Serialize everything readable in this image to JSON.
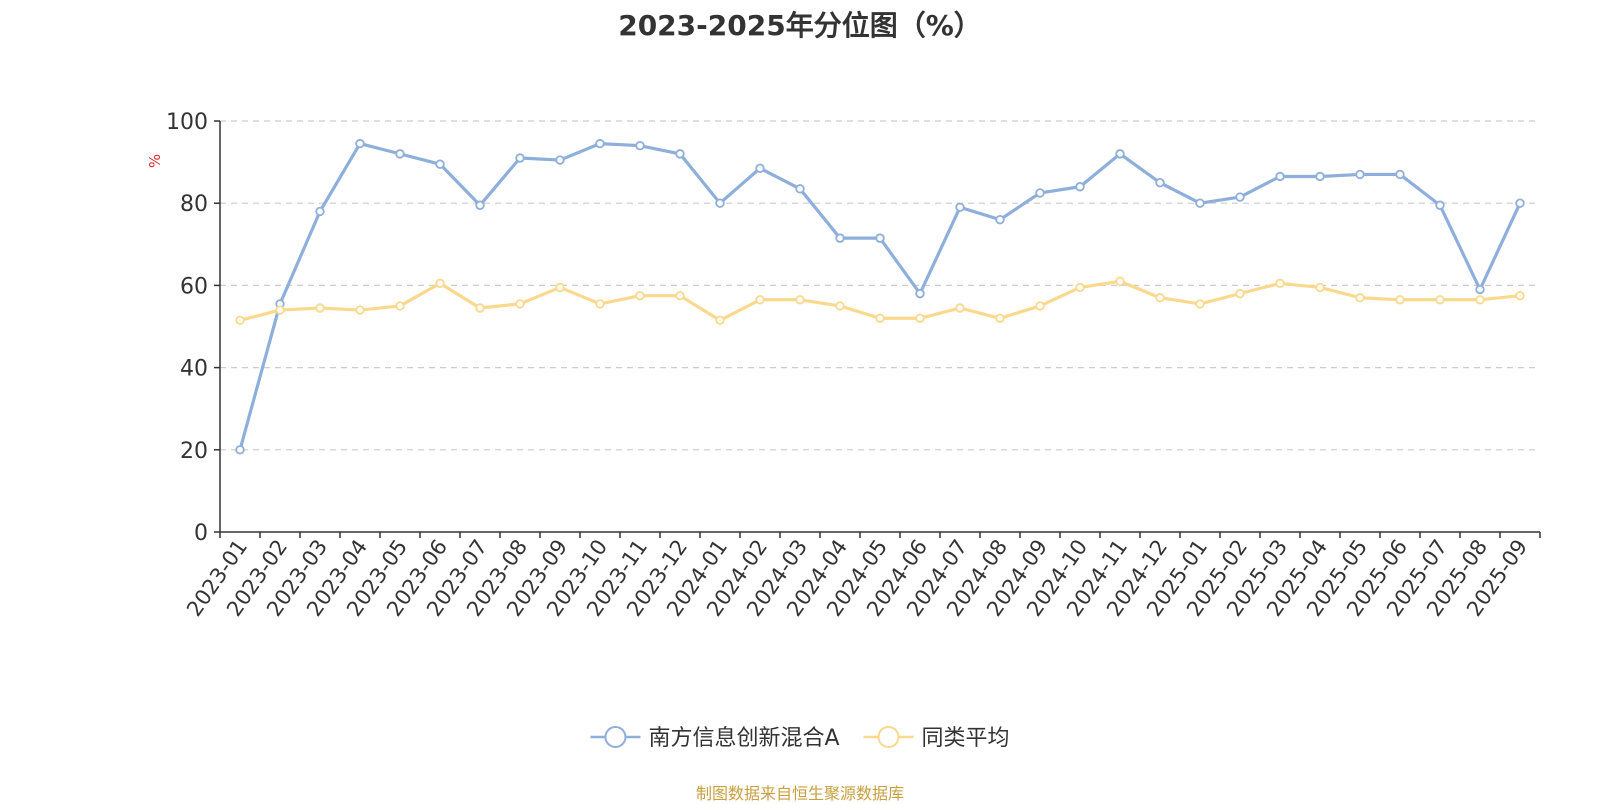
{
  "chart_data": {
    "type": "line",
    "title": "2023-2025年分位图（%）",
    "ylabel": "%",
    "ylim": [
      0,
      100
    ],
    "yticks": [
      0,
      20,
      40,
      60,
      80,
      100
    ],
    "grid": true,
    "legend_position": "bottom-center",
    "categories": [
      "2023-01",
      "2023-02",
      "2023-03",
      "2023-04",
      "2023-05",
      "2023-06",
      "2023-07",
      "2023-08",
      "2023-09",
      "2023-10",
      "2023-11",
      "2023-12",
      "2024-01",
      "2024-02",
      "2024-03",
      "2024-04",
      "2024-05",
      "2024-06",
      "2024-07",
      "2024-08",
      "2024-09",
      "2024-10",
      "2024-11",
      "2024-12",
      "2025-01",
      "2025-02",
      "2025-03",
      "2025-04",
      "2025-05",
      "2025-06",
      "2025-07",
      "2025-08",
      "2025-09"
    ],
    "series": [
      {
        "name": "南方信息创新混合A",
        "color": "#8eaedb",
        "values": [
          20,
          55.5,
          78,
          94.5,
          92,
          89.5,
          79.5,
          91,
          90.5,
          94.5,
          94,
          92,
          80,
          88.5,
          83.5,
          71.5,
          71.5,
          58,
          79,
          76,
          82.5,
          84,
          92,
          85,
          80,
          81.5,
          86.5,
          86.5,
          87,
          87,
          79.5,
          59,
          80
        ]
      },
      {
        "name": "同类平均",
        "color": "#fad88e",
        "values": [
          51.5,
          54,
          54.5,
          54,
          55,
          60.5,
          54.5,
          55.5,
          59.5,
          55.5,
          57.5,
          57.5,
          51.5,
          56.5,
          56.5,
          55,
          52,
          52,
          54.5,
          52,
          55,
          59.5,
          61,
          57,
          55.5,
          58,
          60.5,
          59.5,
          57,
          56.5,
          56.5,
          56.5,
          57.5
        ]
      }
    ]
  },
  "source_note": "制图数据来自恒生聚源数据库"
}
